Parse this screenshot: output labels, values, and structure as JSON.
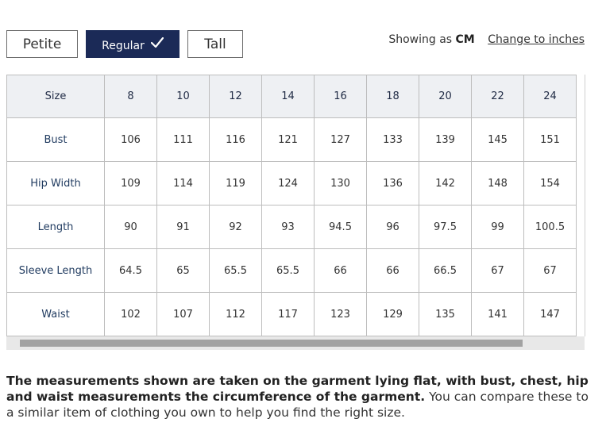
{
  "fit_tabs": {
    "petite": "Petite",
    "regular": "Regular",
    "tall": "Tall",
    "selected": "Regular"
  },
  "units": {
    "showing_prefix": "Showing as",
    "current": "CM",
    "change_link": "Change to inches"
  },
  "table": {
    "header_label": "Size",
    "sizes": [
      "8",
      "10",
      "12",
      "14",
      "16",
      "18",
      "20",
      "22",
      "24"
    ],
    "rows": [
      {
        "label": "Bust",
        "values": [
          "106",
          "111",
          "116",
          "121",
          "127",
          "133",
          "139",
          "145",
          "151"
        ]
      },
      {
        "label": "Hip Width",
        "values": [
          "109",
          "114",
          "119",
          "124",
          "130",
          "136",
          "142",
          "148",
          "154"
        ]
      },
      {
        "label": "Length",
        "values": [
          "90",
          "91",
          "92",
          "93",
          "94.5",
          "96",
          "97.5",
          "99",
          "100.5"
        ]
      },
      {
        "label": "Sleeve Length",
        "values": [
          "64.5",
          "65",
          "65.5",
          "65.5",
          "66",
          "66",
          "66.5",
          "67",
          "67"
        ]
      },
      {
        "label": "Waist",
        "values": [
          "102",
          "107",
          "112",
          "117",
          "123",
          "129",
          "135",
          "141",
          "147"
        ]
      }
    ]
  },
  "note": {
    "bold": "The measurements shown are taken on the garment lying flat, with bust, chest, hip and waist measurements the circumference of the garment.",
    "normal": " You can compare these to a similar item of clothing you own to help you find the right size."
  },
  "colors": {
    "selected_tab": "#1b2a57",
    "header_bg": "#eef0f3"
  }
}
